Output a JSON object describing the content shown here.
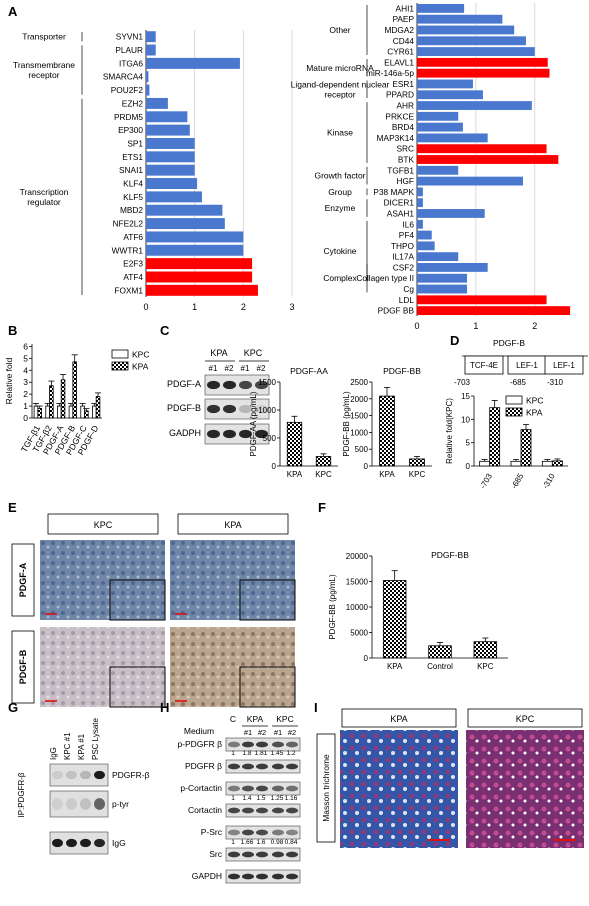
{
  "panel_labels": {
    "A": "A",
    "B": "B",
    "C": "C",
    "D": "D",
    "E": "E",
    "F": "F",
    "G": "G",
    "H": "H",
    "I": "I"
  },
  "colors": {
    "blue": "#4a78cf",
    "red": "#ff0000",
    "grid": "#d0d0d0"
  },
  "chart_data": [
    {
      "id": "A-left",
      "type": "bar",
      "orientation": "horizontal",
      "categories": [
        "SYVN1",
        "PLAUR",
        "ITGA6",
        "SMARCA4",
        "POU2F2",
        "EZH2",
        "PRDM5",
        "EP300",
        "SP1",
        "ETS1",
        "SNAI1",
        "KLF4",
        "KLF5",
        "MBD2",
        "NFE2L2",
        "ATF6",
        "WWTR1",
        "E2F3",
        "ATF4",
        "FOXM1"
      ],
      "values": [
        0.2,
        0.2,
        1.93,
        0.05,
        0.07,
        0.45,
        0.85,
        0.9,
        1.0,
        1.0,
        1.0,
        1.05,
        1.15,
        1.57,
        1.62,
        2.0,
        2.0,
        2.18,
        2.18,
        2.3
      ],
      "highlight": [
        false,
        false,
        false,
        false,
        false,
        false,
        false,
        false,
        false,
        false,
        false,
        false,
        false,
        false,
        false,
        false,
        false,
        true,
        true,
        true
      ],
      "groups": [
        {
          "label": "Transporter",
          "start": 0,
          "end": 0
        },
        {
          "label": "Transmembrane receptor",
          "start": 1,
          "end": 4
        },
        {
          "label": "Transcription regulator",
          "start": 5,
          "end": 19
        }
      ],
      "xticks": [
        0,
        1,
        2,
        3
      ],
      "xlim": [
        0,
        3
      ]
    },
    {
      "id": "A-right",
      "type": "bar",
      "orientation": "horizontal",
      "categories": [
        "AHI1",
        "PAEP",
        "MDGA2",
        "CD44",
        "CYR61",
        "ELAVL1",
        "miR-146a-5p",
        "ESR1",
        "PPARD",
        "AHR",
        "PRKCE",
        "BRD4",
        "MAP3K14",
        "SRC",
        "BTK",
        "TGFB1",
        "HGF",
        "P38 MAPK",
        "DICER1",
        "ASAH1",
        "IL6",
        "PF4",
        "THPO",
        "IL17A",
        "CSF2",
        "Collagen type II",
        "Cg",
        "LDL",
        "PDGF BB"
      ],
      "values": [
        0.8,
        1.45,
        1.65,
        1.85,
        2.0,
        2.22,
        2.25,
        0.95,
        1.12,
        1.95,
        0.7,
        0.78,
        1.2,
        2.2,
        2.4,
        0.7,
        1.8,
        0.1,
        0.1,
        1.15,
        0.1,
        0.25,
        0.3,
        0.7,
        1.2,
        0.85,
        0.85,
        2.2,
        2.6
      ],
      "highlight": [
        false,
        false,
        false,
        false,
        false,
        true,
        true,
        false,
        false,
        false,
        false,
        false,
        false,
        true,
        true,
        false,
        false,
        false,
        false,
        false,
        false,
        false,
        false,
        false,
        false,
        false,
        false,
        true,
        true
      ],
      "groups": [
        {
          "label": "Other",
          "start": 0,
          "end": 4
        },
        {
          "label": "Mature microRNA",
          "start": 5,
          "end": 6
        },
        {
          "label": "Ligand-dependent nuclear receptor",
          "start": 7,
          "end": 8
        },
        {
          "label": "Kinase",
          "start": 9,
          "end": 14
        },
        {
          "label": "Growth factor",
          "start": 15,
          "end": 16
        },
        {
          "label": "Group",
          "start": 17,
          "end": 17
        },
        {
          "label": "Enzyme",
          "start": 18,
          "end": 19
        },
        {
          "label": "Cytokine",
          "start": 20,
          "end": 25
        },
        {
          "label": "Complex",
          "start": 24,
          "end": 26
        }
      ],
      "xticks": [
        0,
        1,
        2
      ],
      "xlim": [
        0,
        2.7
      ]
    },
    {
      "id": "B",
      "type": "bar",
      "categories": [
        "TGF-β1",
        "TGF-β2",
        "PDGF-A",
        "PDGF-B",
        "PDGF-C",
        "PDGF-D"
      ],
      "series": [
        {
          "name": "KPC",
          "values": [
            1,
            1,
            1,
            1,
            1,
            1
          ]
        },
        {
          "name": "KPA",
          "values": [
            0.8,
            2.7,
            3.2,
            4.7,
            0.6,
            1.8
          ]
        }
      ],
      "ylabel": "Relative fold",
      "yticks": [
        0,
        1,
        2,
        3,
        4,
        5,
        6
      ],
      "ylim": [
        0,
        6.2
      ]
    },
    {
      "id": "C-AA",
      "type": "bar",
      "title": "PDGF-AA",
      "categories": [
        "KPA",
        "KPC"
      ],
      "values": [
        780,
        170
      ],
      "ylabel": "PDGF-AA (pg/mL)",
      "yticks": [
        0,
        500,
        1000,
        1500
      ],
      "ylim": [
        0,
        1500
      ]
    },
    {
      "id": "C-BB",
      "type": "bar",
      "title": "PDGF-BB",
      "categories": [
        "KPA",
        "KPC"
      ],
      "values": [
        2080,
        210
      ],
      "ylabel": "PDGF-BB (pg/mL)",
      "yticks": [
        0,
        500,
        1000,
        1500,
        2000,
        2500
      ],
      "ylim": [
        0,
        2500
      ]
    },
    {
      "id": "D",
      "type": "bar",
      "categories": [
        "-703",
        "-685",
        "-310"
      ],
      "series": [
        {
          "name": "KPC",
          "values": [
            1,
            1,
            1
          ]
        },
        {
          "name": "KPA",
          "values": [
            12.5,
            7.8,
            1.1
          ]
        }
      ],
      "ylabel": "Relative fold(KPC)",
      "yticks": [
        0,
        5,
        10,
        15
      ],
      "ylim": [
        0,
        15
      ]
    },
    {
      "id": "F",
      "type": "bar",
      "title": "PDGF-BB",
      "categories": [
        "KPA",
        "Control",
        "KPC"
      ],
      "values": [
        15200,
        2400,
        3200
      ],
      "ylabel": "PDGF-BB (pg/mL)",
      "yticks": [
        0,
        5000,
        10000,
        15000,
        20000
      ],
      "ylim": [
        0,
        20000
      ]
    }
  ],
  "panelC": {
    "groups": [
      "KPA",
      "KPC"
    ],
    "lanes": [
      "#1",
      "#2",
      "#1",
      "#2"
    ],
    "rows": [
      "PDGF-A",
      "PDGF-B",
      "GADPH"
    ]
  },
  "panelD": {
    "gene": "PDGF-B",
    "boxes": [
      "TCF-4E",
      "LEF-1",
      "LEF-1"
    ],
    "positions": [
      "-703",
      "-685",
      "-310"
    ]
  },
  "panelE": {
    "columns": [
      "KPC",
      "KPA"
    ],
    "rows": [
      "PDGF-A",
      "PDGF-B"
    ]
  },
  "panelG": {
    "lanes": [
      "IgG",
      "KPC #1",
      "KPA #1",
      "PSC Lysate"
    ],
    "side": "IP:PDGFR-β",
    "rows": [
      "PDGFR-β",
      "p-tyr",
      "IgG"
    ]
  },
  "panelH": {
    "medium": "Medium",
    "c": "C",
    "groups": [
      "KPA",
      "KPC"
    ],
    "lanes": [
      "#1",
      "#2",
      "#1",
      "#2"
    ],
    "rows": [
      "p-PDGFR β",
      "PDGFR β",
      "p-Cortactin",
      "Cortactin",
      "P-Src",
      "Src",
      "GAPDH"
    ],
    "quant1": [
      "1",
      "1.8",
      "1.81",
      "1.45",
      "1.2"
    ],
    "quant2": [
      "1",
      "1.4",
      "1.5",
      "1.25",
      "1.16"
    ],
    "quant3": [
      "1",
      "1.66",
      "1.6",
      "0.98",
      "0.84"
    ]
  },
  "panelI": {
    "columns": [
      "KPA",
      "KPC"
    ],
    "side": "Masson trichrome"
  }
}
